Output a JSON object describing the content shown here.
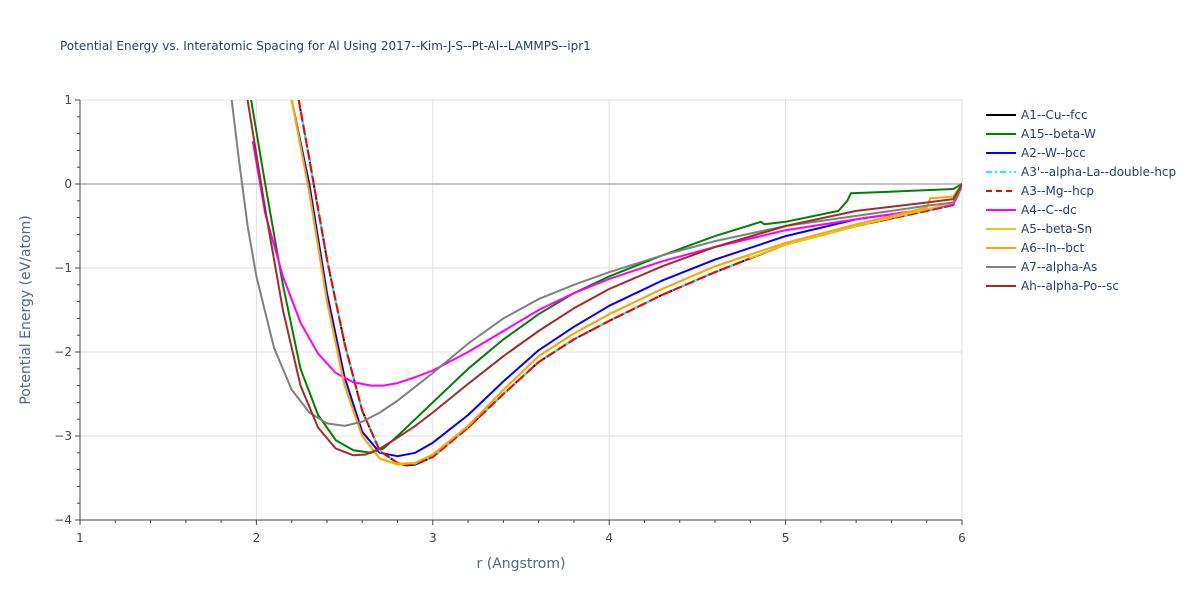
{
  "chart_data": {
    "type": "line",
    "title": "Potential Energy vs. Interatomic Spacing for Al Using 2017--Kim-J-S--Pt-Al--LAMMPS--ipr1",
    "xlabel": "r (Angstrom)",
    "ylabel": "Potential Energy (eV/atom)",
    "xlim": [
      1,
      6
    ],
    "ylim": [
      -4,
      1
    ],
    "xticks": [
      1,
      2,
      3,
      4,
      5,
      6
    ],
    "yticks": [
      -4,
      -3,
      -2,
      -1,
      0,
      1
    ],
    "xtick_labels": [
      "1",
      "2",
      "3",
      "4",
      "5",
      "6"
    ],
    "ytick_labels": [
      "−4",
      "−3",
      "−2",
      "−1",
      "0",
      "1"
    ],
    "grid": true,
    "legend_position": "right",
    "series": [
      {
        "name": "A1--Cu--fcc",
        "color": "#000000",
        "dash": "solid",
        "x": [
          2.24,
          2.3,
          2.4,
          2.5,
          2.6,
          2.7,
          2.8,
          2.85,
          2.9,
          3.0,
          3.2,
          3.4,
          3.6,
          3.8,
          4.0,
          4.3,
          4.6,
          5.0,
          5.4,
          5.8,
          5.95,
          6.0
        ],
        "y": [
          1.0,
          0.3,
          -0.9,
          -1.9,
          -2.7,
          -3.18,
          -3.32,
          -3.35,
          -3.34,
          -3.25,
          -2.9,
          -2.5,
          -2.12,
          -1.85,
          -1.63,
          -1.32,
          -1.05,
          -0.72,
          -0.5,
          -0.32,
          -0.25,
          -0.02
        ]
      },
      {
        "name": "A15--beta-W",
        "color": "#008000",
        "dash": "solid",
        "x": [
          1.97,
          2.05,
          2.15,
          2.25,
          2.35,
          2.45,
          2.55,
          2.65,
          2.72,
          2.8,
          2.9,
          3.0,
          3.2,
          3.4,
          3.6,
          3.8,
          4.0,
          4.3,
          4.6,
          4.86,
          4.88,
          5.0,
          5.3,
          5.35,
          5.37,
          5.5,
          5.95,
          6.0
        ],
        "y": [
          1.0,
          0.0,
          -1.2,
          -2.2,
          -2.75,
          -3.05,
          -3.17,
          -3.2,
          -3.15,
          -3.0,
          -2.8,
          -2.6,
          -2.2,
          -1.85,
          -1.55,
          -1.3,
          -1.1,
          -0.85,
          -0.62,
          -0.45,
          -0.48,
          -0.45,
          -0.32,
          -0.2,
          -0.11,
          -0.1,
          -0.06,
          0.0
        ]
      },
      {
        "name": "A2--W--bcc",
        "color": "#0000ff",
        "dash": "solid",
        "x": [
          2.2,
          2.3,
          2.4,
          2.5,
          2.6,
          2.7,
          2.8,
          2.9,
          3.0,
          3.2,
          3.4,
          3.6,
          3.8,
          4.0,
          4.3,
          4.6,
          5.0,
          5.4,
          5.8,
          5.95,
          6.0
        ],
        "y": [
          1.0,
          0.0,
          -1.3,
          -2.3,
          -2.95,
          -3.2,
          -3.24,
          -3.2,
          -3.08,
          -2.75,
          -2.35,
          -1.98,
          -1.7,
          -1.45,
          -1.15,
          -0.9,
          -0.62,
          -0.42,
          -0.3,
          -0.25,
          -0.02
        ]
      },
      {
        "name": "A3'--alpha-La--double-hcp",
        "color": "#00ffff",
        "dash": "dashdot",
        "x": [
          2.24,
          2.3,
          2.4,
          2.5,
          2.6,
          2.7,
          2.8,
          2.85,
          2.9,
          3.0,
          3.2,
          3.4,
          3.6,
          3.8,
          4.0,
          4.3,
          4.6,
          5.0,
          5.4,
          5.8,
          5.95,
          6.0
        ],
        "y": [
          1.0,
          0.3,
          -0.9,
          -1.9,
          -2.7,
          -3.18,
          -3.32,
          -3.34,
          -3.33,
          -3.25,
          -2.9,
          -2.5,
          -2.12,
          -1.85,
          -1.63,
          -1.32,
          -1.05,
          -0.72,
          -0.5,
          -0.32,
          -0.25,
          -0.02
        ]
      },
      {
        "name": "A3--Mg--hcp",
        "color": "#ff0000",
        "dash": "dash",
        "x": [
          2.24,
          2.3,
          2.4,
          2.5,
          2.6,
          2.7,
          2.8,
          2.85,
          2.9,
          3.0,
          3.2,
          3.4,
          3.6,
          3.8,
          4.0,
          4.3,
          4.6,
          5.0,
          5.4,
          5.8,
          5.95,
          6.0
        ],
        "y": [
          1.0,
          0.3,
          -0.9,
          -1.9,
          -2.7,
          -3.18,
          -3.32,
          -3.34,
          -3.33,
          -3.25,
          -2.9,
          -2.5,
          -2.12,
          -1.85,
          -1.63,
          -1.32,
          -1.05,
          -0.72,
          -0.5,
          -0.32,
          -0.25,
          -0.02
        ]
      },
      {
        "name": "A4--C--dc",
        "color": "#ff00ff",
        "dash": "solid",
        "x": [
          1.98,
          2.05,
          2.15,
          2.25,
          2.35,
          2.45,
          2.55,
          2.65,
          2.72,
          2.8,
          2.9,
          3.0,
          3.2,
          3.4,
          3.6,
          3.8,
          4.0,
          4.3,
          4.6,
          5.0,
          5.4,
          5.8,
          5.95,
          6.0
        ],
        "y": [
          0.5,
          -0.35,
          -1.1,
          -1.65,
          -2.02,
          -2.25,
          -2.36,
          -2.4,
          -2.4,
          -2.37,
          -2.3,
          -2.22,
          -2.0,
          -1.75,
          -1.5,
          -1.3,
          -1.13,
          -0.92,
          -0.75,
          -0.55,
          -0.42,
          -0.3,
          -0.24,
          -0.02
        ]
      },
      {
        "name": "A5--beta-Sn",
        "color": "#e6c619",
        "dash": "solid",
        "x": [
          2.2,
          2.3,
          2.4,
          2.5,
          2.6,
          2.7,
          2.8,
          2.9,
          3.0,
          3.2,
          3.4,
          3.6,
          3.8,
          4.0,
          4.3,
          4.6,
          4.78,
          4.8,
          5.0,
          5.4,
          5.8,
          5.95,
          6.0
        ],
        "y": [
          1.0,
          -0.1,
          -1.4,
          -2.4,
          -3.0,
          -3.27,
          -3.33,
          -3.32,
          -3.22,
          -2.88,
          -2.45,
          -2.05,
          -1.78,
          -1.55,
          -1.25,
          -0.98,
          -0.85,
          -0.88,
          -0.72,
          -0.5,
          -0.3,
          -0.22,
          0.0
        ]
      },
      {
        "name": "A6--In--bct",
        "color": "#ffa500",
        "dash": "solid",
        "x": [
          2.2,
          2.3,
          2.4,
          2.5,
          2.6,
          2.7,
          2.8,
          2.9,
          3.0,
          3.2,
          3.4,
          3.6,
          3.8,
          4.0,
          4.3,
          4.6,
          5.0,
          5.4,
          5.8,
          5.82,
          5.95,
          6.0
        ],
        "y": [
          1.0,
          -0.1,
          -1.4,
          -2.4,
          -3.0,
          -3.27,
          -3.34,
          -3.32,
          -3.22,
          -2.88,
          -2.45,
          -2.05,
          -1.78,
          -1.55,
          -1.25,
          -0.98,
          -0.7,
          -0.48,
          -0.28,
          -0.17,
          -0.15,
          0.0
        ]
      },
      {
        "name": "A7--alpha-As",
        "color": "#808080",
        "dash": "solid",
        "x": [
          1.86,
          1.9,
          1.95,
          2.0,
          2.1,
          2.2,
          2.3,
          2.4,
          2.5,
          2.6,
          2.7,
          2.8,
          3.0,
          3.2,
          3.4,
          3.6,
          3.8,
          4.0,
          4.3,
          4.6,
          5.0,
          5.4,
          5.8,
          5.95,
          6.0
        ],
        "y": [
          1.0,
          0.3,
          -0.5,
          -1.1,
          -1.95,
          -2.45,
          -2.72,
          -2.85,
          -2.88,
          -2.83,
          -2.72,
          -2.58,
          -2.25,
          -1.9,
          -1.6,
          -1.37,
          -1.2,
          -1.05,
          -0.85,
          -0.68,
          -0.5,
          -0.38,
          -0.26,
          -0.22,
          -0.02
        ]
      },
      {
        "name": "Ah--alpha-Po--sc",
        "color": "#a52a2a",
        "dash": "solid",
        "x": [
          1.95,
          2.05,
          2.15,
          2.25,
          2.35,
          2.45,
          2.55,
          2.62,
          2.7,
          2.8,
          2.9,
          3.0,
          3.2,
          3.4,
          3.6,
          3.8,
          4.0,
          4.3,
          4.6,
          5.0,
          5.4,
          5.8,
          5.95,
          6.0
        ],
        "y": [
          1.0,
          -0.3,
          -1.5,
          -2.4,
          -2.9,
          -3.15,
          -3.23,
          -3.22,
          -3.15,
          -3.02,
          -2.88,
          -2.72,
          -2.38,
          -2.05,
          -1.75,
          -1.48,
          -1.25,
          -0.98,
          -0.75,
          -0.5,
          -0.32,
          -0.22,
          -0.18,
          0.0
        ]
      }
    ]
  }
}
